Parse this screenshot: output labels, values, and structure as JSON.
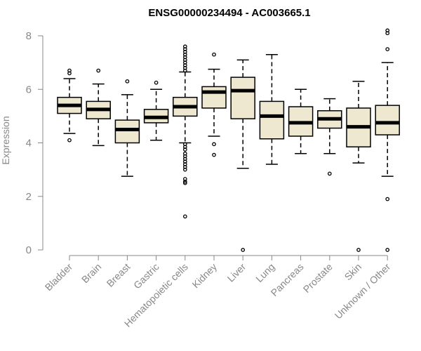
{
  "chart_data": {
    "type": "box",
    "title": "ENSG00000234494 - AC003665.1",
    "xlabel": "",
    "ylabel": "Expression",
    "ylim": [
      0,
      8
    ],
    "yticks": [
      0,
      2,
      4,
      6,
      8
    ],
    "box_fill": "#efe8d0",
    "box_stroke": "#000000",
    "categories": [
      "Bladder",
      "Brain",
      "Breast",
      "Gastric",
      "Hematopoietic cells",
      "Kidney",
      "Liver",
      "Lung",
      "Pancreas",
      "Prostate",
      "Skin",
      "Unknown / Other"
    ],
    "boxes": [
      {
        "q1": 5.1,
        "median": 5.4,
        "q3": 5.7,
        "whisker_low": 4.35,
        "whisker_high": 6.4,
        "outliers": [
          6.6,
          6.7,
          4.1
        ]
      },
      {
        "q1": 4.9,
        "median": 5.25,
        "q3": 5.55,
        "whisker_low": 3.9,
        "whisker_high": 6.2,
        "outliers": [
          6.7
        ]
      },
      {
        "q1": 4.0,
        "median": 4.5,
        "q3": 4.85,
        "whisker_low": 2.75,
        "whisker_high": 5.8,
        "outliers": [
          6.3
        ]
      },
      {
        "q1": 4.75,
        "median": 4.95,
        "q3": 5.25,
        "whisker_low": 4.1,
        "whisker_high": 6.0,
        "outliers": [
          6.25
        ]
      },
      {
        "q1": 5.0,
        "median": 5.35,
        "q3": 5.7,
        "whisker_low": 4.0,
        "whisker_high": 6.65,
        "outliers": [
          7.6,
          7.5,
          7.4,
          7.3,
          7.2,
          7.1,
          7.0,
          6.9,
          6.8,
          6.7,
          3.95,
          3.85,
          3.75,
          3.6,
          3.5,
          3.4,
          3.3,
          3.2,
          3.1,
          3.0,
          2.65,
          2.55,
          2.5,
          1.25
        ]
      },
      {
        "q1": 5.3,
        "median": 5.9,
        "q3": 6.1,
        "whisker_low": 4.25,
        "whisker_high": 6.75,
        "outliers": [
          7.3,
          3.95,
          3.55
        ]
      },
      {
        "q1": 4.9,
        "median": 5.95,
        "q3": 6.45,
        "whisker_low": 3.05,
        "whisker_high": 7.1,
        "outliers": [
          0
        ]
      },
      {
        "q1": 4.15,
        "median": 5.0,
        "q3": 5.55,
        "whisker_low": 3.2,
        "whisker_high": 7.3,
        "outliers": []
      },
      {
        "q1": 4.25,
        "median": 4.75,
        "q3": 5.35,
        "whisker_low": 3.6,
        "whisker_high": 6.0,
        "outliers": []
      },
      {
        "q1": 4.55,
        "median": 4.9,
        "q3": 5.2,
        "whisker_low": 3.6,
        "whisker_high": 5.65,
        "outliers": [
          2.85
        ]
      },
      {
        "q1": 3.85,
        "median": 4.6,
        "q3": 5.3,
        "whisker_low": 3.25,
        "whisker_high": 6.3,
        "outliers": [
          0
        ]
      },
      {
        "q1": 4.3,
        "median": 4.75,
        "q3": 5.4,
        "whisker_low": 2.75,
        "whisker_high": 7.0,
        "outliers": [
          8.2,
          8.1,
          7.5,
          1.9,
          0
        ]
      }
    ]
  }
}
